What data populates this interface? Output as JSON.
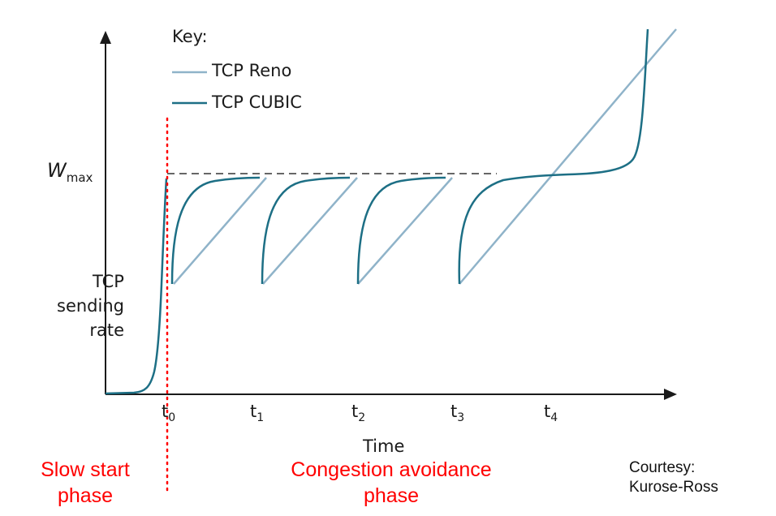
{
  "key": {
    "title": "Key:",
    "reno_label": "TCP Reno",
    "cubic_label": "TCP CUBIC"
  },
  "y_axis": {
    "wmax_symbol": "W",
    "wmax_subscript": "max",
    "label_lines": [
      "TCP",
      "sending",
      "rate"
    ]
  },
  "x_axis": {
    "label": "Time",
    "ticks": [
      {
        "base": "t",
        "sub": "0"
      },
      {
        "base": "t",
        "sub": "1"
      },
      {
        "base": "t",
        "sub": "2"
      },
      {
        "base": "t",
        "sub": "3"
      },
      {
        "base": "t",
        "sub": "4"
      }
    ]
  },
  "phases": {
    "slow_start": [
      "Slow start",
      "phase"
    ],
    "congestion_avoidance": [
      "Congestion avoidance",
      "phase"
    ]
  },
  "credit": [
    "Courtesy:",
    "Kurose-Ross"
  ],
  "colors": {
    "reno": "#8fb3c9",
    "cubic": "#1d6f85",
    "axis": "#1a1a1a",
    "phase_divider": "#ff0000",
    "wmax_dashed": "#333333"
  }
}
